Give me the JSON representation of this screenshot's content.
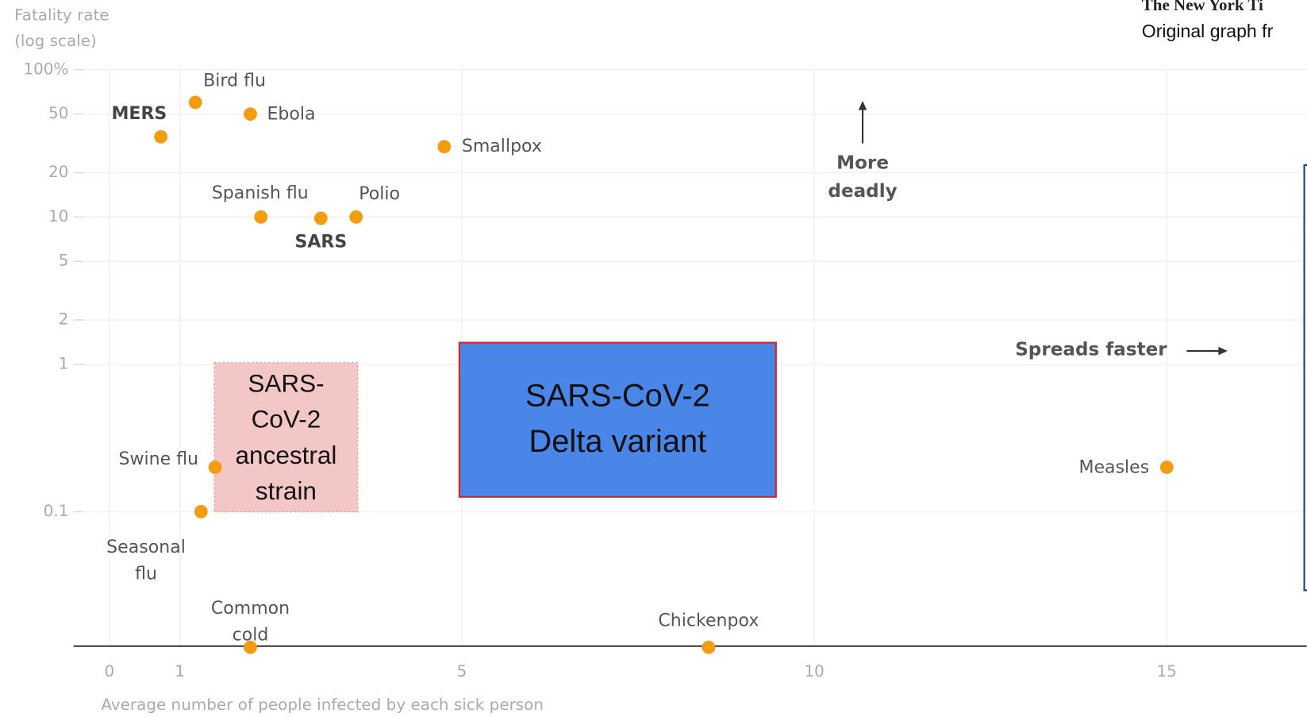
{
  "chart_data": {
    "type": "scatter",
    "y_label_lines": [
      "Fatality rate",
      "(log scale)"
    ],
    "x_label": "Average number of people infected by each sick person",
    "labels": [
      "MERS",
      "Bird flu",
      "Ebola",
      "Smallpox",
      "Spanish flu",
      "SARS",
      "Polio",
      "Swine flu",
      "Seasonal flu",
      "Measles",
      "Common cold",
      "Chickenpox"
    ],
    "x": [
      0.73,
      1.22,
      2.0,
      4.75,
      2.15,
      3.0,
      3.5,
      1.5,
      1.3,
      15,
      2.0,
      8.5
    ],
    "values": [
      35,
      60,
      50,
      30,
      10,
      9.8,
      10,
      0.2,
      0.1,
      0.2,
      0.012,
      0.012
    ],
    "color": "#f39c12",
    "xlim": [
      -0.5,
      17.0
    ],
    "ylim": [
      0.012,
      100
    ],
    "xticks": [
      0,
      1,
      5,
      10,
      15
    ],
    "yticks": [
      {
        "value": 100,
        "label": "100%"
      },
      50,
      20,
      10,
      5,
      2,
      1,
      0.1
    ],
    "log_y": true,
    "grid": true,
    "annotations": {
      "more_deadly": [
        "More",
        "deadly"
      ],
      "spreads_faster": "Spreads faster",
      "ancestral": "SARS-CoV-2 ancestral strain",
      "delta": [
        "SARS-CoV-2",
        "Delta variant"
      ]
    },
    "source_logo": "The New York Ti",
    "source_note": "Original graph fr"
  }
}
